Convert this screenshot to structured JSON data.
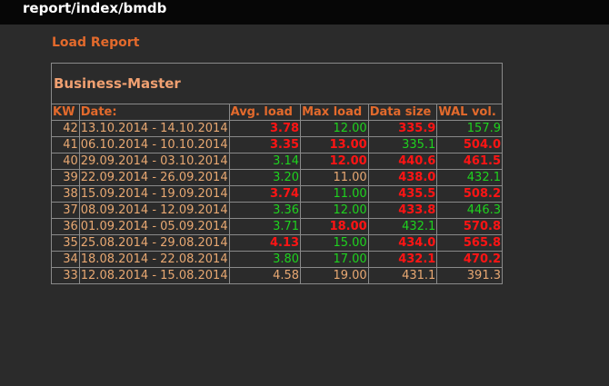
{
  "header": {
    "title": "report/index/bmdb"
  },
  "nav": {
    "load_report_label": "Load Report"
  },
  "table": {
    "caption": "Business-Master",
    "columns": [
      "KW",
      "Date:",
      "Avg. load",
      "Max load",
      "Data size",
      "WAL vol."
    ],
    "rows": [
      {
        "kw": "42",
        "date": "13.10.2014 - 14.10.2014",
        "avg": "3.78",
        "avg_status": "red",
        "max": "12.00",
        "max_status": "green",
        "size": "335.9",
        "size_status": "red",
        "wal": "157.9",
        "wal_status": "green"
      },
      {
        "kw": "41",
        "date": "06.10.2014 - 10.10.2014",
        "avg": "3.35",
        "avg_status": "red",
        "max": "13.00",
        "max_status": "red",
        "size": "335.1",
        "size_status": "green",
        "wal": "504.0",
        "wal_status": "red"
      },
      {
        "kw": "40",
        "date": "29.09.2014 - 03.10.2014",
        "avg": "3.14",
        "avg_status": "green",
        "max": "12.00",
        "max_status": "red",
        "size": "440.6",
        "size_status": "red",
        "wal": "461.5",
        "wal_status": "red"
      },
      {
        "kw": "39",
        "date": "22.09.2014 - 26.09.2014",
        "avg": "3.20",
        "avg_status": "green",
        "max": "11.00",
        "max_status": "plain",
        "size": "438.0",
        "size_status": "red",
        "wal": "432.1",
        "wal_status": "green"
      },
      {
        "kw": "38",
        "date": "15.09.2014 - 19.09.2014",
        "avg": "3.74",
        "avg_status": "red",
        "max": "11.00",
        "max_status": "green",
        "size": "435.5",
        "size_status": "red",
        "wal": "508.2",
        "wal_status": "red"
      },
      {
        "kw": "37",
        "date": "08.09.2014 - 12.09.2014",
        "avg": "3.36",
        "avg_status": "green",
        "max": "12.00",
        "max_status": "green",
        "size": "433.8",
        "size_status": "red",
        "wal": "446.3",
        "wal_status": "green"
      },
      {
        "kw": "36",
        "date": "01.09.2014 - 05.09.2014",
        "avg": "3.71",
        "avg_status": "green",
        "max": "18.00",
        "max_status": "red",
        "size": "432.1",
        "size_status": "green",
        "wal": "570.8",
        "wal_status": "red"
      },
      {
        "kw": "35",
        "date": "25.08.2014 - 29.08.2014",
        "avg": "4.13",
        "avg_status": "red",
        "max": "15.00",
        "max_status": "green",
        "size": "434.0",
        "size_status": "red",
        "wal": "565.8",
        "wal_status": "red"
      },
      {
        "kw": "34",
        "date": "18.08.2014 - 22.08.2014",
        "avg": "3.80",
        "avg_status": "green",
        "max": "17.00",
        "max_status": "green",
        "size": "432.1",
        "size_status": "red",
        "wal": "470.2",
        "wal_status": "red"
      },
      {
        "kw": "33",
        "date": "12.08.2014 - 15.08.2014",
        "avg": "4.58",
        "avg_status": "plain",
        "max": "19.00",
        "max_status": "plain",
        "size": "431.1",
        "size_status": "plain",
        "wal": "391.3",
        "wal_status": "plain"
      }
    ]
  },
  "colors": {
    "accent": "#e36a2c",
    "caption": "#f0a071",
    "text": "#e8a872",
    "good": "#1ed21e",
    "bad": "#ff1414",
    "background": "#2b2b2b",
    "topbar": "#060606"
  }
}
